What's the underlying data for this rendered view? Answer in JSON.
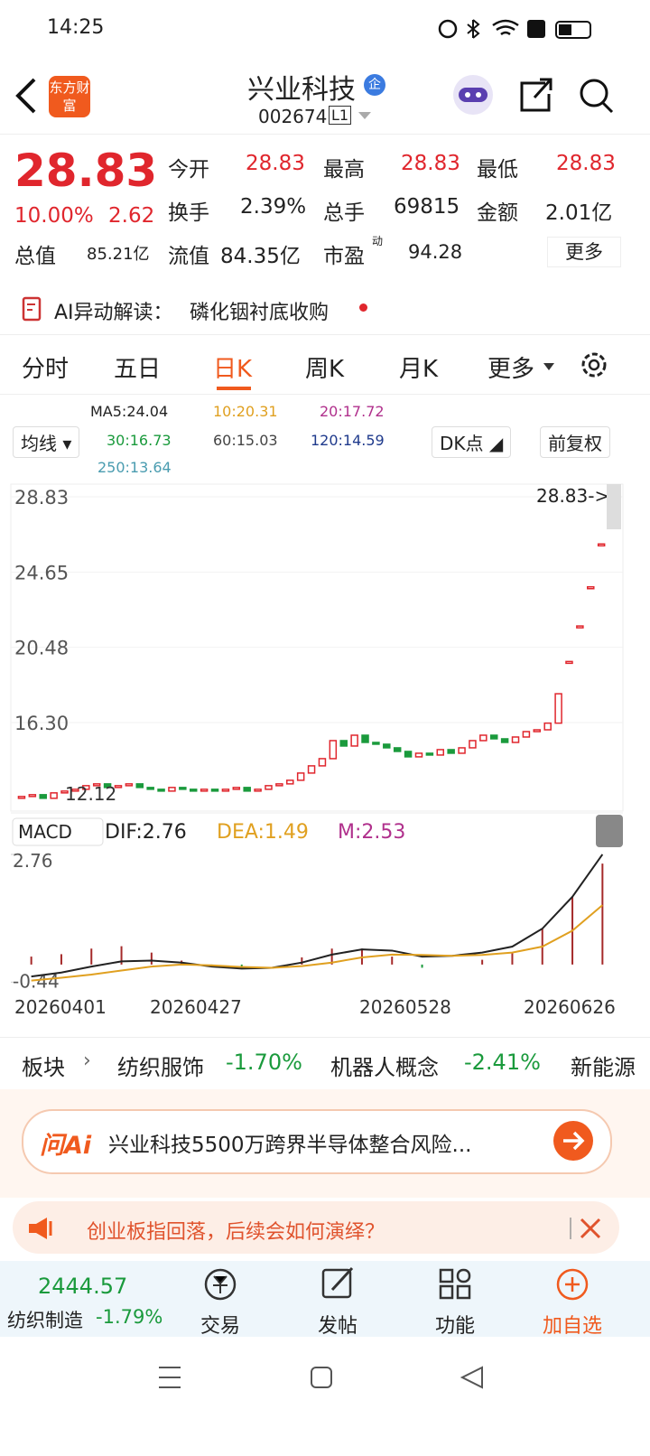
{
  "status": {
    "time": "14:25"
  },
  "header": {
    "logo": "东方财富",
    "title": "兴业科技",
    "badge": "企",
    "code": "002674",
    "level": "L1"
  },
  "quote": {
    "price": "28.83",
    "change_pct": "10.00%",
    "change": "2.62",
    "fields": [
      {
        "label": "今开",
        "value": "28.83"
      },
      {
        "label": "最高",
        "value": "28.83"
      },
      {
        "label": "最低",
        "value": "28.83"
      },
      {
        "label": "换手",
        "value": "2.39%"
      },
      {
        "label": "总手",
        "value": "69815"
      },
      {
        "label": "金额",
        "value": "2.01亿"
      },
      {
        "label": "总值",
        "value": "85.21亿"
      },
      {
        "label": "流值",
        "value": "84.35亿"
      },
      {
        "label": "市盈",
        "sup": "动",
        "value": "94.28"
      }
    ],
    "more": "更多"
  },
  "ai": {
    "label": "AI异动解读：",
    "text": "磷化铟衬底收购"
  },
  "tabs": {
    "items": [
      "分时",
      "五日",
      "日K",
      "周K",
      "月K",
      "更多"
    ],
    "active": 2
  },
  "ma": {
    "selector": "均线",
    "entries": [
      {
        "text": "MA5:24.04",
        "color": "#222222"
      },
      {
        "text": "10:20.31",
        "color": "#e0a020"
      },
      {
        "text": "20:17.72",
        "color": "#b0308c"
      },
      {
        "text": "30:16.73",
        "color": "#1a9a3c"
      },
      {
        "text": "60:15.03",
        "color": "#444444"
      },
      {
        "text": "120:14.59",
        "color": "#1f3a8c"
      },
      {
        "text": "250:13.64",
        "color": "#4a9cb0"
      }
    ],
    "dk": "DK点",
    "fq": "前复权"
  },
  "chart_data": {
    "type": "candlestick",
    "ylim": [
      11.54,
      29.33
    ],
    "yticks": [
      28.83,
      24.65,
      20.48,
      {
        "value": 16.3,
        "label": "16.30"
      }
    ],
    "price_tag": "28.83->",
    "low_label": "12.12",
    "opens": [
      12.1,
      12.2,
      12.3,
      12.1,
      12.4,
      12.5,
      12.6,
      12.8,
      12.9,
      12.7,
      12.8,
      12.9,
      12.7,
      12.6,
      12.5,
      12.7,
      12.6,
      12.5,
      12.6,
      12.5,
      12.6,
      12.7,
      12.5,
      12.6,
      12.8,
      12.9,
      13.1,
      13.5,
      13.9,
      14.3,
      15.3,
      15.0,
      15.6,
      15.2,
      15.1,
      14.9,
      14.7,
      14.4,
      14.6,
      14.5,
      14.8,
      14.6,
      14.9,
      15.3,
      15.6,
      15.4,
      15.2,
      15.5,
      15.8,
      15.9,
      16.27,
      19.69,
      21.66,
      23.83,
      26.21,
      28.83
    ],
    "closes": [
      12.2,
      12.3,
      12.1,
      12.4,
      12.5,
      12.6,
      12.8,
      12.9,
      12.7,
      12.8,
      12.9,
      12.7,
      12.6,
      12.5,
      12.7,
      12.6,
      12.5,
      12.6,
      12.5,
      12.6,
      12.7,
      12.5,
      12.6,
      12.8,
      12.9,
      13.1,
      13.5,
      13.9,
      14.3,
      15.3,
      15.0,
      15.6,
      15.2,
      15.1,
      14.9,
      14.7,
      14.4,
      14.6,
      14.5,
      14.8,
      14.6,
      14.9,
      15.3,
      15.6,
      15.4,
      15.2,
      15.5,
      15.8,
      15.9,
      16.27,
      17.9,
      19.69,
      21.66,
      23.83,
      26.21,
      28.83
    ],
    "up_color": "#e0262d",
    "down_color": "#1a9a3c"
  },
  "macd_data": {
    "type": "macd",
    "label": "MACD",
    "dif_label": "DIF:2.76",
    "dea_label": "DEA:1.49",
    "m_label": "M:2.53",
    "ylim": [
      -0.5,
      2.85
    ],
    "yticks": [
      2.76,
      -0.44
    ],
    "dif": [
      -0.3,
      -0.2,
      -0.05,
      0.08,
      0.1,
      0.05,
      -0.05,
      -0.1,
      -0.08,
      0.05,
      0.25,
      0.38,
      0.35,
      0.2,
      0.22,
      0.3,
      0.45,
      0.9,
      1.7,
      2.76
    ],
    "dea": [
      -0.4,
      -0.33,
      -0.25,
      -0.15,
      -0.05,
      0.0,
      -0.02,
      -0.06,
      -0.08,
      -0.04,
      0.05,
      0.18,
      0.25,
      0.24,
      0.22,
      0.24,
      0.3,
      0.45,
      0.85,
      1.49
    ],
    "m": [
      0.2,
      0.26,
      0.4,
      0.46,
      0.3,
      0.1,
      -0.06,
      -0.08,
      0,
      0.18,
      0.4,
      0.4,
      0.2,
      -0.08,
      0,
      0.12,
      0.3,
      0.9,
      1.7,
      2.53
    ],
    "dif_color": "#222222",
    "dea_color": "#e0a020",
    "dates": [
      "20260401",
      "20260427",
      "20260528",
      "20260626"
    ]
  },
  "sector": {
    "label": "板块",
    "items": [
      {
        "name": "纺织服饰",
        "change": "-1.70%"
      },
      {
        "name": "机器人概念",
        "change": "-2.41%"
      },
      {
        "name": "新能源"
      }
    ]
  },
  "ask": {
    "brand": "问Ai",
    "text": "兴业科技5500万跨界半导体整合风险..."
  },
  "notice": {
    "text": "创业板指回落，后续会如何演绎？"
  },
  "bottom": {
    "index_value": "2444.57",
    "index_name": "纺织制造",
    "index_change": "-1.79%",
    "buttons": [
      "交易",
      "发帖",
      "功能",
      "加自选"
    ]
  }
}
